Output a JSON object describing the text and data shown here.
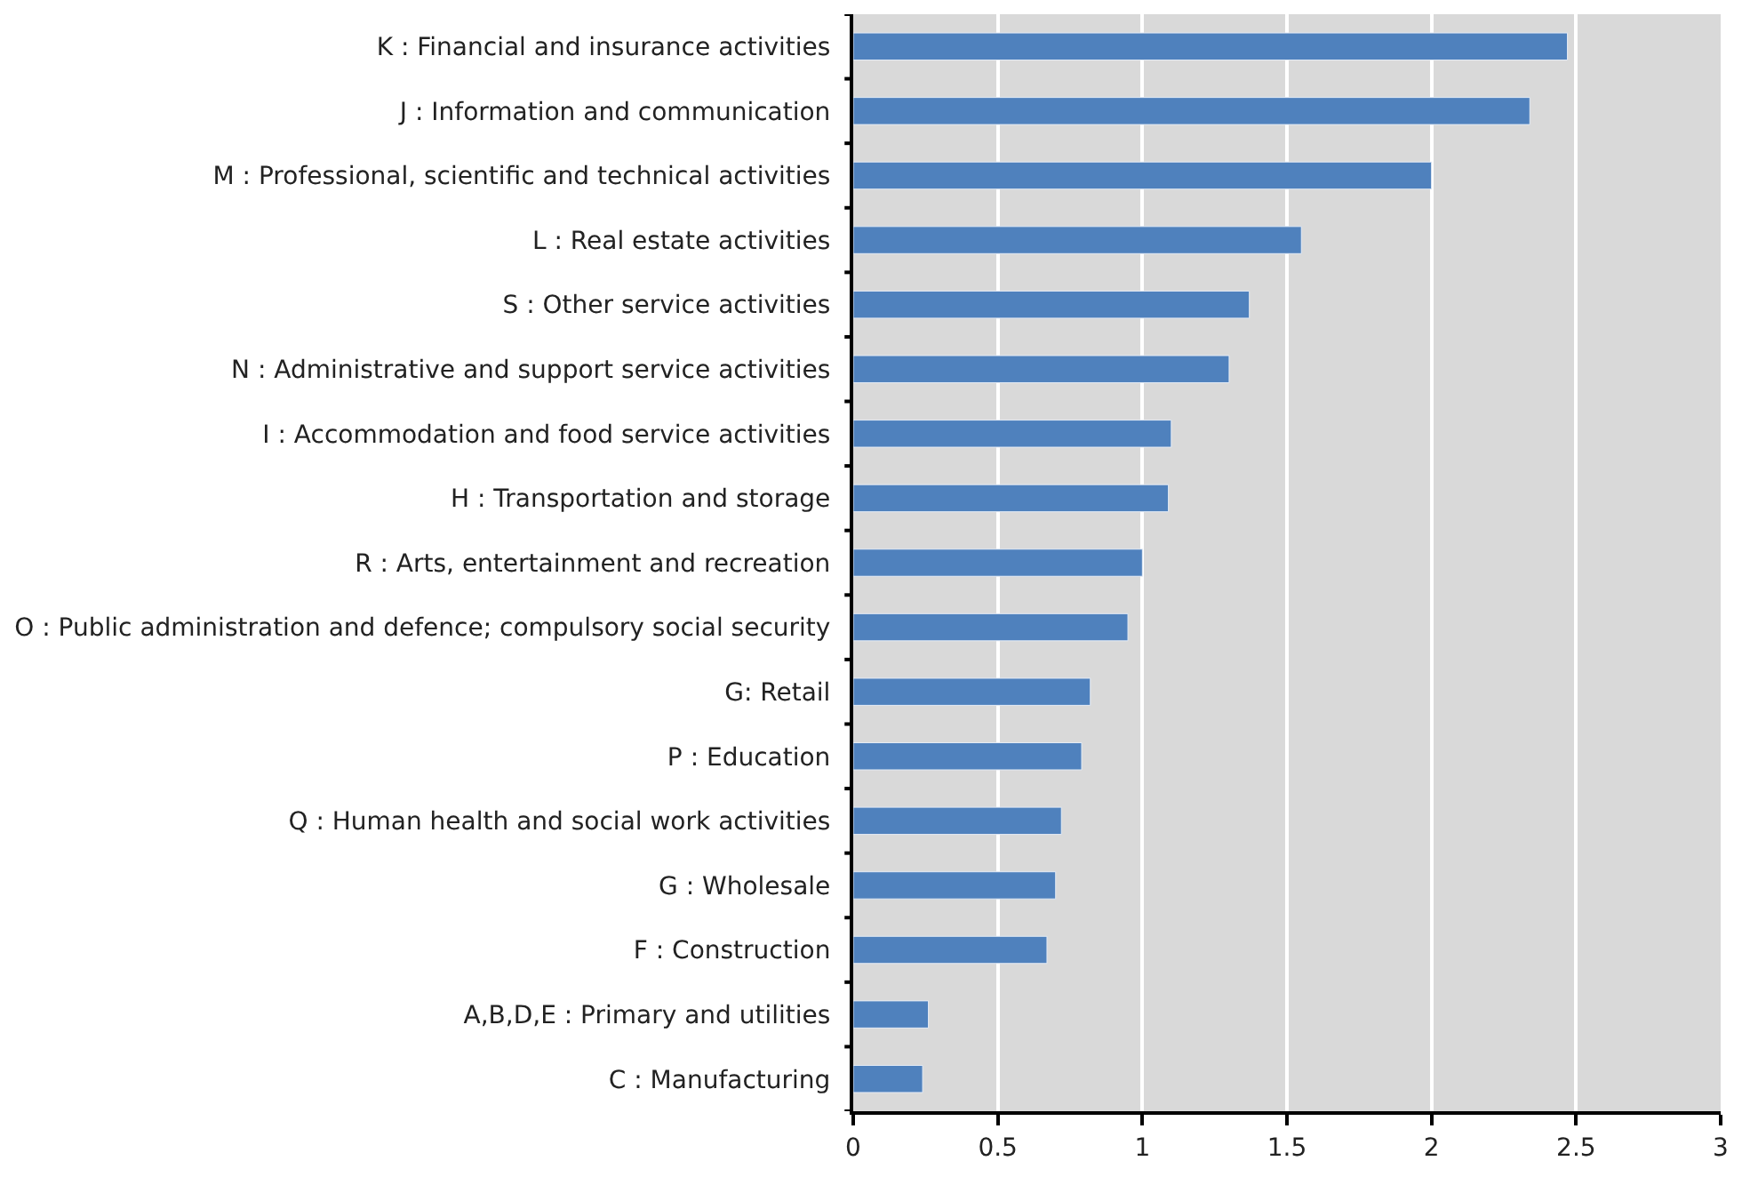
{
  "chart_data": {
    "type": "bar",
    "orientation": "horizontal",
    "categories": [
      "K : Financial and insurance activities",
      "J : Information and communication",
      "M : Professional, scientific and technical activities",
      "L : Real estate activities",
      "S : Other service activities",
      "N : Administrative and support service activities",
      "I : Accommodation and food service activities",
      "H : Transportation and storage",
      "R : Arts, entertainment and recreation",
      "O : Public administration and defence; compulsory social security",
      "G: Retail",
      "P : Education",
      "Q : Human health and social work activities",
      "G : Wholesale",
      "F : Construction",
      "A,B,D,E : Primary and utilities",
      "C : Manufacturing"
    ],
    "values": [
      2.47,
      2.34,
      2.0,
      1.55,
      1.37,
      1.3,
      1.1,
      1.09,
      1.0,
      0.95,
      0.82,
      0.79,
      0.72,
      0.7,
      0.67,
      0.26,
      0.24
    ],
    "color": "#4f81bd",
    "xlim": [
      0,
      3
    ],
    "xticks": [
      0,
      0.5,
      1,
      1.5,
      2,
      2.5,
      3
    ],
    "grid": "x"
  }
}
